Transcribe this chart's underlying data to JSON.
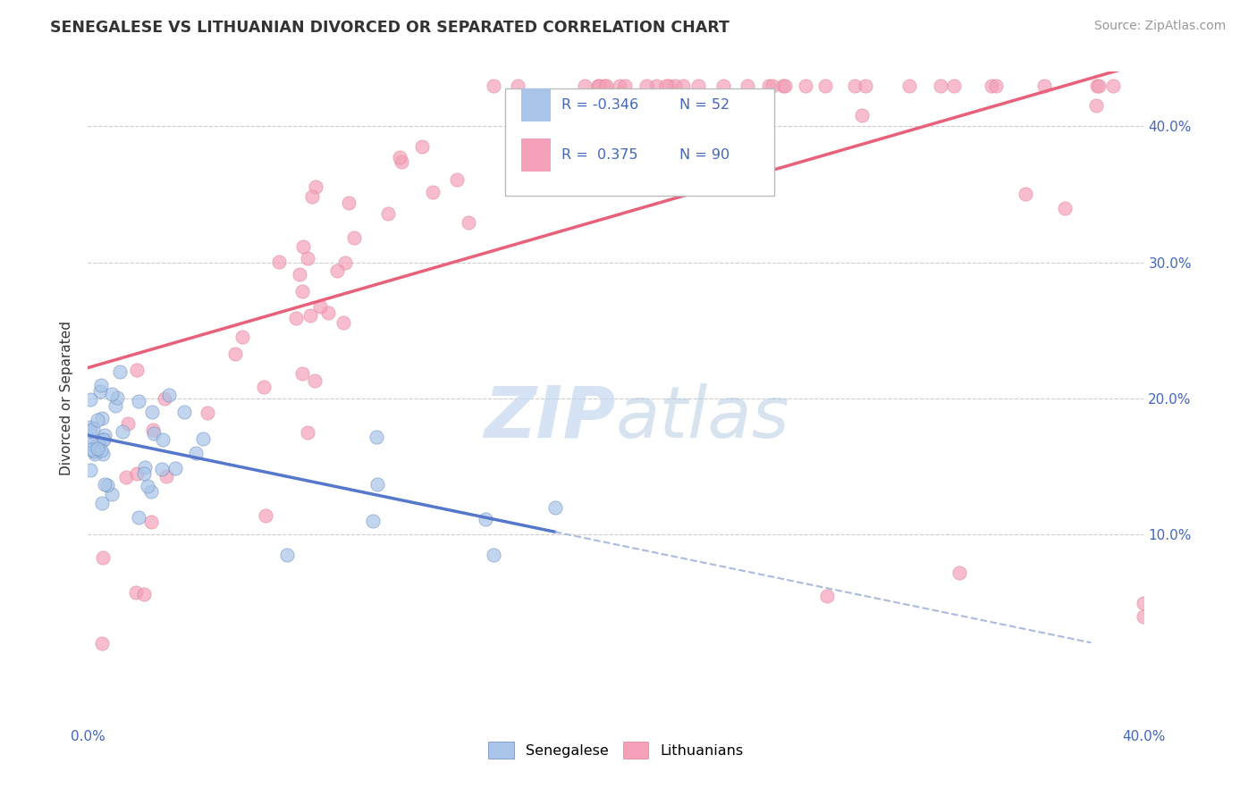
{
  "title": "SENEGALESE VS LITHUANIAN DIVORCED OR SEPARATED CORRELATION CHART",
  "source_text": "Source: ZipAtlas.com",
  "ylabel": "Divorced or Separated",
  "xlim": [
    0.0,
    0.4
  ],
  "ylim": [
    -0.04,
    0.44
  ],
  "color_senegalese": "#a8c4e8",
  "color_lithuanians": "#f4a0b8",
  "color_line_senegalese": "#5577cc",
  "color_line_lithuanians": "#e8607a",
  "color_line_dashed": "#aabbdd",
  "watermark_color": "#c5d8f0",
  "background_color": "#ffffff",
  "grid_color": "#cccccc",
  "legend_r1_val": "-0.346",
  "legend_n1_val": "52",
  "legend_r2_val": "0.375",
  "legend_n2_val": "90",
  "text_color_blue": "#4466bb",
  "text_color_dark": "#333333",
  "text_color_source": "#999999"
}
